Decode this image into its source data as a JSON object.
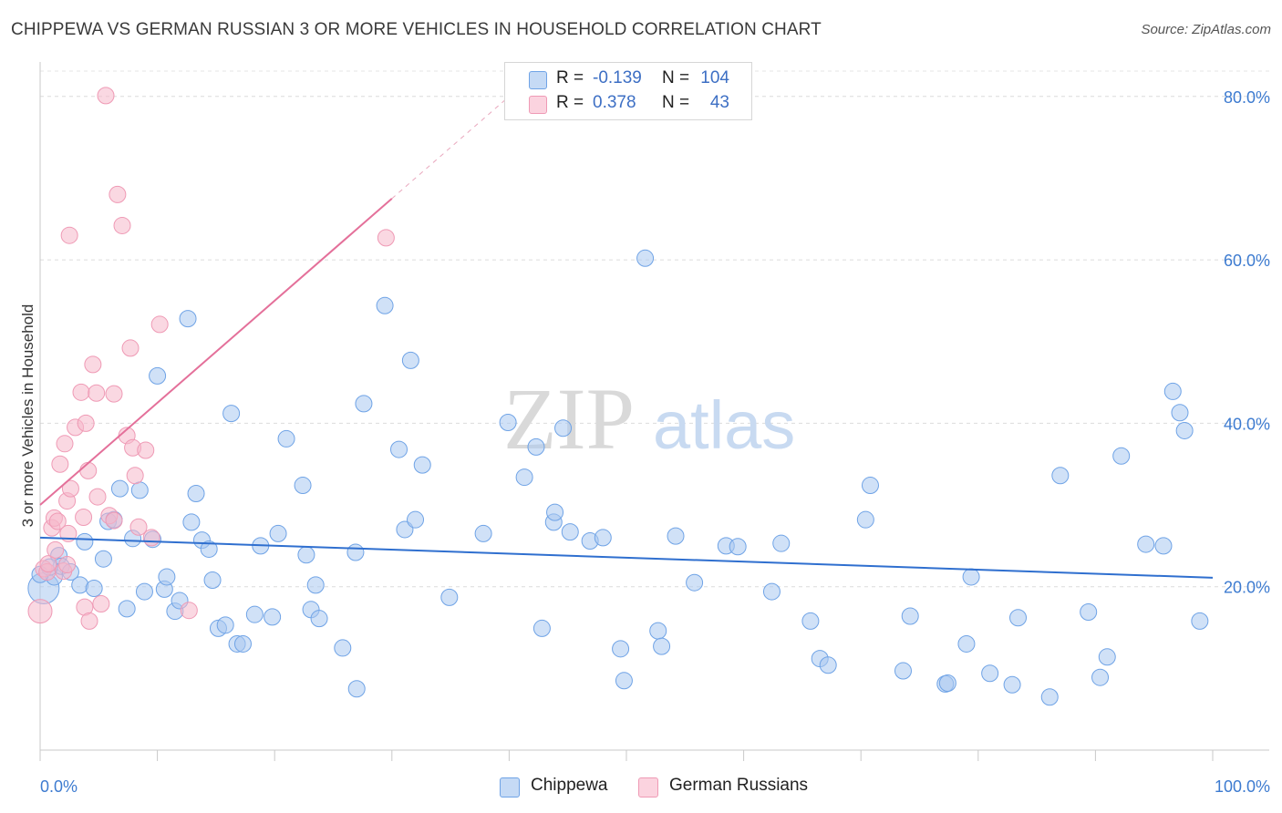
{
  "header": {
    "title": "CHIPPEWA VS GERMAN RUSSIAN 3 OR MORE VEHICLES IN HOUSEHOLD CORRELATION CHART",
    "source": "Source: ZipAtlas.com"
  },
  "watermark": {
    "zip": "ZIP",
    "atlas": "atlas"
  },
  "legend": {
    "rows": [
      {
        "r_label": "R =",
        "r_value": "-0.139",
        "n_label": "N =",
        "n_value": "104",
        "color": "#a9c8f0"
      },
      {
        "r_label": "R =",
        "r_value": "0.378",
        "n_label": "N =",
        "n_value": "43",
        "color": "#f5b8ca"
      }
    ]
  },
  "bottom_legend": {
    "items": [
      {
        "label": "Chippewa",
        "color": "#a9c8f0"
      },
      {
        "label": "German Russians",
        "color": "#f5b8ca"
      }
    ]
  },
  "chart_data": {
    "type": "scatter",
    "title": "CHIPPEWA VS GERMAN RUSSIAN 3 OR MORE VEHICLES IN HOUSEHOLD CORRELATION CHART",
    "ylabel": "3 or more Vehicles in Household",
    "xlabel": "",
    "xlim": [
      0,
      100
    ],
    "ylim": [
      0,
      86
    ],
    "x_tick_labels": [
      "0.0%",
      "100.0%"
    ],
    "y_ticks": [
      20,
      40,
      60,
      80
    ],
    "y_tick_labels": [
      "20.0%",
      "40.0%",
      "60.0%",
      "80.0%"
    ],
    "grid": true,
    "legend_position": "top-center",
    "series": [
      {
        "name": "Chippewa",
        "color": "#6fa3e6",
        "fill": "#a9c8f0",
        "trend": {
          "x": [
            0,
            100
          ],
          "y": [
            26.0,
            21.1
          ],
          "color": "#2f6fcf"
        },
        "points": [
          [
            0.3,
            19.8
          ],
          [
            1.2,
            21.2
          ],
          [
            1.6,
            23.8
          ],
          [
            1.8,
            22.5
          ],
          [
            2.6,
            21.8
          ],
          [
            3.4,
            20.2
          ],
          [
            3.8,
            25.5
          ],
          [
            4.6,
            19.8
          ],
          [
            5.4,
            23.4
          ],
          [
            5.8,
            28.0
          ],
          [
            6.3,
            28.2
          ],
          [
            6.8,
            32.0
          ],
          [
            7.4,
            17.3
          ],
          [
            7.9,
            25.9
          ],
          [
            8.5,
            31.8
          ],
          [
            8.9,
            19.4
          ],
          [
            9.6,
            25.8
          ],
          [
            10.0,
            45.8
          ],
          [
            10.6,
            19.7
          ],
          [
            10.8,
            21.2
          ],
          [
            11.5,
            17.0
          ],
          [
            11.9,
            18.3
          ],
          [
            12.6,
            52.8
          ],
          [
            12.9,
            27.9
          ],
          [
            13.3,
            31.4
          ],
          [
            13.8,
            25.7
          ],
          [
            14.4,
            24.6
          ],
          [
            14.7,
            20.8
          ],
          [
            15.2,
            14.9
          ],
          [
            15.8,
            15.3
          ],
          [
            16.3,
            41.2
          ],
          [
            16.8,
            13.0
          ],
          [
            17.3,
            13.0
          ],
          [
            18.3,
            16.6
          ],
          [
            18.8,
            25.0
          ],
          [
            19.8,
            16.3
          ],
          [
            20.3,
            26.5
          ],
          [
            21.0,
            38.1
          ],
          [
            22.4,
            32.4
          ],
          [
            22.7,
            23.9
          ],
          [
            23.1,
            17.2
          ],
          [
            23.5,
            20.2
          ],
          [
            23.8,
            16.1
          ],
          [
            25.8,
            12.5
          ],
          [
            26.9,
            24.2
          ],
          [
            27.0,
            7.5
          ],
          [
            27.6,
            42.4
          ],
          [
            29.4,
            54.4
          ],
          [
            30.6,
            36.8
          ],
          [
            31.1,
            27.0
          ],
          [
            31.6,
            47.7
          ],
          [
            32.0,
            28.2
          ],
          [
            32.6,
            34.9
          ],
          [
            34.9,
            18.7
          ],
          [
            37.8,
            26.5
          ],
          [
            39.9,
            40.1
          ],
          [
            41.3,
            33.4
          ],
          [
            42.3,
            37.1
          ],
          [
            42.8,
            14.9
          ],
          [
            43.8,
            27.9
          ],
          [
            43.9,
            29.1
          ],
          [
            44.6,
            39.4
          ],
          [
            45.2,
            26.7
          ],
          [
            46.9,
            25.6
          ],
          [
            48.0,
            26.0
          ],
          [
            49.5,
            12.4
          ],
          [
            49.8,
            8.5
          ],
          [
            51.6,
            60.2
          ],
          [
            52.7,
            14.6
          ],
          [
            53.0,
            12.7
          ],
          [
            54.2,
            26.2
          ],
          [
            55.8,
            20.5
          ],
          [
            58.5,
            25.0
          ],
          [
            59.5,
            24.9
          ],
          [
            62.4,
            19.4
          ],
          [
            63.2,
            25.3
          ],
          [
            65.7,
            15.8
          ],
          [
            66.5,
            11.2
          ],
          [
            67.2,
            10.4
          ],
          [
            70.4,
            28.2
          ],
          [
            70.8,
            32.4
          ],
          [
            73.6,
            9.7
          ],
          [
            74.2,
            16.4
          ],
          [
            77.2,
            8.1
          ],
          [
            77.4,
            8.2
          ],
          [
            79.0,
            13.0
          ],
          [
            79.4,
            21.2
          ],
          [
            81.0,
            9.4
          ],
          [
            82.9,
            8.0
          ],
          [
            83.4,
            16.2
          ],
          [
            86.1,
            6.5
          ],
          [
            87.0,
            33.6
          ],
          [
            89.4,
            16.9
          ],
          [
            90.4,
            8.9
          ],
          [
            91.0,
            11.4
          ],
          [
            92.2,
            36.0
          ],
          [
            94.3,
            25.2
          ],
          [
            95.8,
            25.0
          ],
          [
            96.6,
            43.9
          ],
          [
            97.2,
            41.3
          ],
          [
            97.6,
            39.1
          ],
          [
            98.9,
            15.8
          ],
          [
            0.0,
            21.5
          ],
          [
            0.8,
            22.4
          ]
        ],
        "sizes": {
          "0": 30
        }
      },
      {
        "name": "German Russians",
        "color": "#ef9ab5",
        "fill": "#f5b8ca",
        "trend": {
          "x": [
            0,
            30.0
          ],
          "y": [
            30.0,
            67.5
          ],
          "color": "#e4709a",
          "dashed_to": [
            40.0,
            80.0
          ]
        },
        "points": [
          [
            0.0,
            17.0
          ],
          [
            0.3,
            22.2
          ],
          [
            0.6,
            21.8
          ],
          [
            0.7,
            22.8
          ],
          [
            1.0,
            27.2
          ],
          [
            1.2,
            28.4
          ],
          [
            1.3,
            24.5
          ],
          [
            1.5,
            28.0
          ],
          [
            1.7,
            35.0
          ],
          [
            2.0,
            21.9
          ],
          [
            2.1,
            37.5
          ],
          [
            2.3,
            22.7
          ],
          [
            2.3,
            30.5
          ],
          [
            2.4,
            26.5
          ],
          [
            2.5,
            63.0
          ],
          [
            2.6,
            32.0
          ],
          [
            3.0,
            39.5
          ],
          [
            3.5,
            43.8
          ],
          [
            3.7,
            28.5
          ],
          [
            3.8,
            17.5
          ],
          [
            3.9,
            40.0
          ],
          [
            4.1,
            34.2
          ],
          [
            4.2,
            15.8
          ],
          [
            4.5,
            47.2
          ],
          [
            4.8,
            43.7
          ],
          [
            4.9,
            31.0
          ],
          [
            5.2,
            17.9
          ],
          [
            5.6,
            80.1
          ],
          [
            5.9,
            28.7
          ],
          [
            6.3,
            43.6
          ],
          [
            6.6,
            68.0
          ],
          [
            7.0,
            64.2
          ],
          [
            7.4,
            38.5
          ],
          [
            7.7,
            49.2
          ],
          [
            7.9,
            37.0
          ],
          [
            8.1,
            33.6
          ],
          [
            8.4,
            27.3
          ],
          [
            9.0,
            36.7
          ],
          [
            9.5,
            26.0
          ],
          [
            10.2,
            52.1
          ],
          [
            12.7,
            17.1
          ],
          [
            29.5,
            62.7
          ],
          [
            6.3,
            28.1
          ]
        ]
      }
    ]
  }
}
